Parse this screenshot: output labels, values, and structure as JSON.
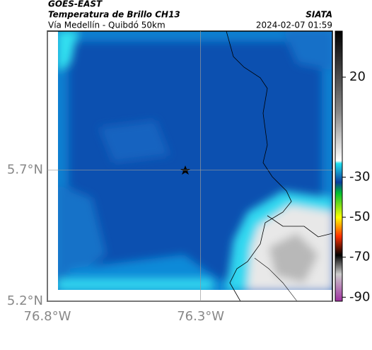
{
  "header": {
    "satellite": "GOES-EAST",
    "product": "Temperatura de Brillo CH13",
    "region": "Vía Medellín - Quibdó 50km",
    "source": "SIATA",
    "datetime": "2024-02-07 01:59"
  },
  "map": {
    "xlim": [
      -76.8,
      -75.87
    ],
    "ylim": [
      5.2,
      6.23
    ],
    "xticks": [
      {
        "value": -76.8,
        "label": "76.8°W"
      },
      {
        "value": -76.3,
        "label": "76.3°W"
      }
    ],
    "yticks": [
      {
        "value": 5.2,
        "label": "5.2°N"
      },
      {
        "value": 5.7,
        "label": "5.7°N"
      }
    ],
    "grid": true
  },
  "colorbar": {
    "lim": [
      -92,
      43
    ],
    "ticks": [
      20,
      -30,
      -50,
      -70,
      -90
    ]
  }
}
